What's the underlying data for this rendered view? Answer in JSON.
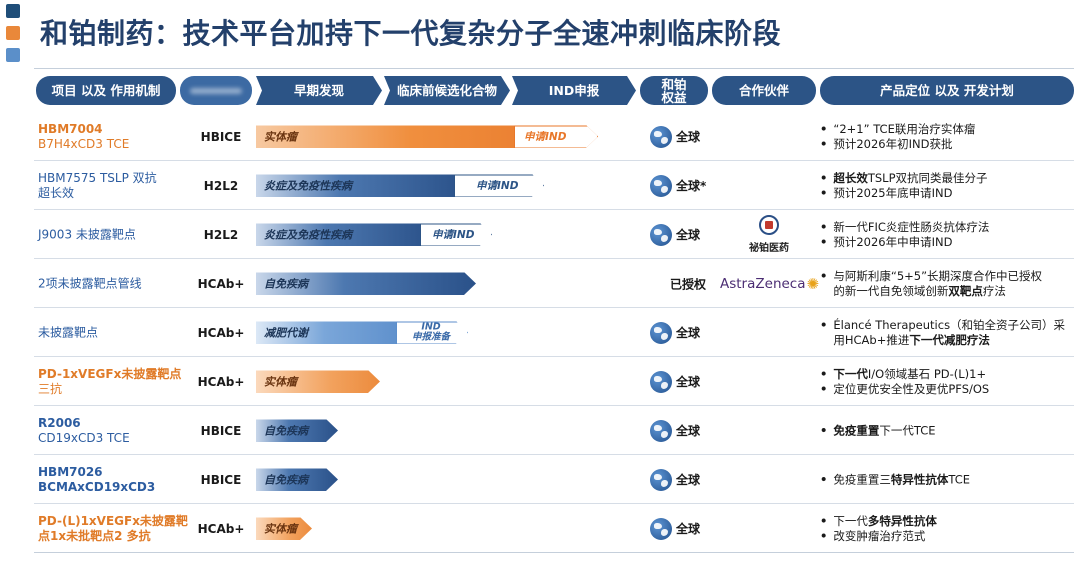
{
  "title": "和铂制药：技术平台加持下一代复杂分子全速冲刺临床阶段",
  "headers": {
    "project": "项目 以及 作用机制",
    "platform": "平台",
    "discovery": "早期发现",
    "preclinical": "临床前候选化合物",
    "ind": "IND申报",
    "rights": "和铂\n权益",
    "partner": "合作伙伴",
    "positioning": "产品定位 以及 开发计划"
  },
  "rows": [
    {
      "project": "HBM7004",
      "project2": "B7H4xCD3 TCE",
      "platform": "HBICE",
      "bar_label": "实体瘤",
      "ind_label": "申请IND",
      "rights": "全球",
      "plan1": "“2+1” TCE联用治疗实体瘤",
      "plan2": "预计2026年初IND获批"
    },
    {
      "project": "HBM7575 TSLP 双抗",
      "project2": "超长效",
      "platform": "H2L2",
      "bar_label": "炎症及免疫性疾病",
      "ind_label": "申请IND",
      "rights": "全球*",
      "plan1_bold": "超长效",
      "plan1": "TSLP双抗同类最佳分子",
      "plan2": "预计2025年底申请IND"
    },
    {
      "project": "J9003 未披露靶点",
      "platform": "H2L2",
      "bar_label": "炎症及免疫性疾病",
      "ind_label": "申请IND",
      "rights": "全球",
      "partner": "祕铂医药",
      "plan1": "新一代FIC炎症性肠炎抗体疗法",
      "plan2": "预计2026年中申请IND"
    },
    {
      "project": "2项未披露靶点管线",
      "platform": "HCAb+",
      "bar_label": "自免疾病",
      "rights": "已授权",
      "partner": "AstraZeneca",
      "plan1": "与阿斯利康“5+5”长期深度合作中已授权",
      "plan2_pre": "的新一代自免领域创新",
      "plan2_bold": "双靶点",
      "plan2": "疗法"
    },
    {
      "project": "未披露靶点",
      "platform": "HCAb+",
      "bar_label": "减肥代谢",
      "ind_label1": "IND",
      "ind_label2": "申报准备",
      "rights": "全球",
      "plan1": "Élancé Therapeutics（和铂全资子公司）采",
      "plan2_pre": "用HCAb+推进",
      "plan2_bold": "下一代减肥疗法"
    },
    {
      "project": "PD-1xVEGFx未披露靶点",
      "project2": "三抗",
      "platform": "HCAb+",
      "bar_label": "实体瘤",
      "rights": "全球",
      "plan1_bold": "下一代",
      "plan1": "I/O领域基石 PD-(L)1+",
      "plan2": "定位更优安全性及更优PFS/OS"
    },
    {
      "project": "R2006",
      "project2": "CD19xCD3 TCE",
      "platform": "HBICE",
      "bar_label": "自免疾病",
      "rights": "全球",
      "plan1_bold": "免疫重置",
      "plan1": "下一代TCE"
    },
    {
      "project": "HBM7026",
      "project2": "BCMAxCD19xCD3",
      "platform": "HBICE",
      "bar_label": "自免疾病",
      "rights": "全球",
      "plan1_pre": "免疫重置三",
      "plan1_bold": "特异性抗体",
      "plan1": "TCE"
    },
    {
      "project": "PD-(L)1xVEGFx未披露靶",
      "project2": "点1x未批靶点2 多抗",
      "platform": "HCAb+",
      "bar_label": "实体瘤",
      "rights": "全球",
      "plan1_pre": "下一代",
      "plan1_bold": "多特异性抗体",
      "plan1": "",
      "plan2": "改变肿瘤治疗范式"
    }
  ],
  "colors": {
    "navy": "#2c5486",
    "orange": "#e8772a",
    "title": "#23406b"
  },
  "icons": {
    "rights": "globe-icon"
  }
}
